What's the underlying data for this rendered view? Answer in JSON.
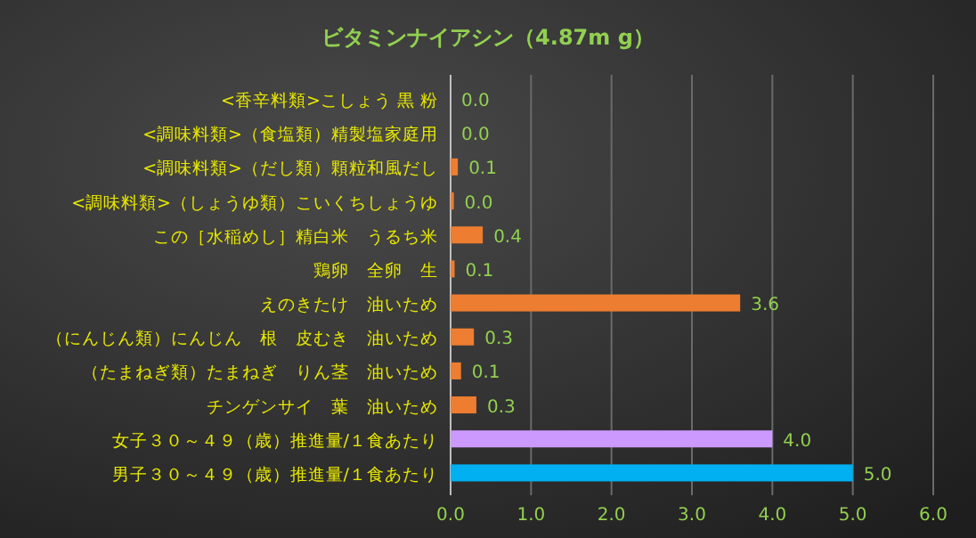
{
  "chart_data": {
    "type": "bar",
    "orientation": "horizontal",
    "title": "ビタミンナイアシン（4.87m g）",
    "categories": [
      "<香辛料類>こしょう 黒 粉",
      "<調味料類>（食塩類）精製塩家庭用",
      "<調味料類>（だし類）顆粒和風だし",
      "<調味料類>（しょうゆ類）こいくちしょうゆ",
      "この［水稲めし］精白米　うるち米",
      "鶏卵　全卵　生",
      "えのきたけ　油いため",
      "（にんじん類）にんじん　根　皮むき　油いため",
      "（たまねぎ類）たまねぎ　りん茎　油いため",
      "チンゲンサイ　葉　油いため",
      "女子３０～４９（歳）推進量/１食あたり",
      "男子３０～４９（歳）推進量/１食あたり"
    ],
    "values": [
      0.0,
      0.0,
      0.09,
      0.04,
      0.4,
      0.05,
      3.6,
      0.29,
      0.13,
      0.32,
      4.0,
      5.0
    ],
    "value_labels": [
      "0.0",
      "0.0",
      "0.1",
      "0.0",
      "0.4",
      "0.1",
      "3.6",
      "0.3",
      "0.1",
      "0.3",
      "4.0",
      "5.0"
    ],
    "colors": [
      "#ed7d31",
      "#ed7d31",
      "#ed7d31",
      "#ed7d31",
      "#ed7d31",
      "#ed7d31",
      "#ed7d31",
      "#ed7d31",
      "#ed7d31",
      "#ed7d31",
      "#cc99ff",
      "#00b0f0"
    ],
    "xlim": [
      0,
      6
    ],
    "xticks": [
      {
        "value": 0,
        "label": "0.0"
      },
      {
        "value": 1,
        "label": "1.0"
      },
      {
        "value": 2,
        "label": "2.0"
      },
      {
        "value": 3,
        "label": "3.0"
      },
      {
        "value": 4,
        "label": "4.0"
      },
      {
        "value": 5,
        "label": "5.0"
      },
      {
        "value": 6,
        "label": "6.0"
      }
    ],
    "grid": "x"
  }
}
